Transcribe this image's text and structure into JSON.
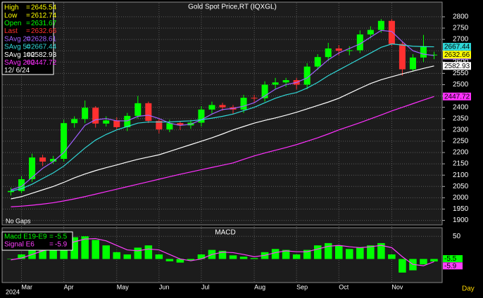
{
  "chart_data": [
    {
      "type": "candlestick",
      "title": "Gold Spot Price,RT  (IQXGL)",
      "date": "12/ 6/24",
      "note": "No Gaps",
      "up_color": "#00ff00",
      "down_color": "#ff3030",
      "open": [
        2025,
        2030,
        2082,
        2178,
        2160,
        2172,
        2330,
        2348,
        2398,
        2328,
        2342,
        2312,
        2362,
        2418,
        2340,
        2302,
        2330,
        2320,
        2332,
        2390,
        2410,
        2400,
        2390,
        2442,
        2440,
        2500,
        2510,
        2520,
        2500,
        2580,
        2622,
        2660,
        2650,
        2652,
        2722,
        2742,
        2782,
        2680,
        2568,
        2620,
        2631.67
      ],
      "high": [
        2045,
        2095,
        2195,
        2190,
        2185,
        2345,
        2360,
        2430,
        2405,
        2360,
        2355,
        2375,
        2450,
        2425,
        2350,
        2345,
        2340,
        2345,
        2405,
        2425,
        2420,
        2410,
        2455,
        2455,
        2515,
        2530,
        2530,
        2530,
        2595,
        2635,
        2685,
        2675,
        2670,
        2740,
        2758,
        2790,
        2790,
        2690,
        2635,
        2720,
        2645.54
      ],
      "low": [
        2010,
        2020,
        2070,
        2140,
        2150,
        2160,
        2310,
        2330,
        2310,
        2315,
        2300,
        2295,
        2350,
        2330,
        2285,
        2290,
        2300,
        2305,
        2315,
        2370,
        2385,
        2370,
        2375,
        2420,
        2425,
        2480,
        2490,
        2480,
        2480,
        2565,
        2605,
        2630,
        2630,
        2640,
        2705,
        2730,
        2670,
        2540,
        2560,
        2600,
        2612.74
      ],
      "close": [
        2030,
        2082,
        2178,
        2160,
        2172,
        2330,
        2348,
        2398,
        2328,
        2342,
        2312,
        2362,
        2418,
        2340,
        2302,
        2330,
        2320,
        2332,
        2390,
        2410,
        2400,
        2390,
        2442,
        2440,
        2500,
        2510,
        2520,
        2500,
        2580,
        2622,
        2660,
        2650,
        2652,
        2722,
        2742,
        2782,
        2680,
        2568,
        2620,
        2670,
        2632.66
      ],
      "quote": [
        {
          "name": "High",
          "value": 2645.54,
          "color": "#ffff00"
        },
        {
          "name": "Low",
          "value": 2612.74,
          "color": "#ffff00"
        },
        {
          "name": "Open",
          "value": 2631.67,
          "color": "#00ff00"
        },
        {
          "name": "Last",
          "value": 2632.66,
          "color": "#ff3030"
        }
      ],
      "last_color": "#ffff00",
      "series": [
        {
          "name": "SAvg 20",
          "color": "#a060ff",
          "values": [
            2035,
            2050,
            2090,
            2130,
            2160,
            2200,
            2260,
            2320,
            2345,
            2350,
            2340,
            2340,
            2360,
            2365,
            2350,
            2330,
            2320,
            2325,
            2345,
            2370,
            2390,
            2395,
            2405,
            2420,
            2450,
            2480,
            2500,
            2510,
            2530,
            2570,
            2610,
            2640,
            2660,
            2680,
            2710,
            2740,
            2735,
            2690,
            2650,
            2635,
            2628.61
          ]
        },
        {
          "name": "SAvg 50",
          "color": "#30d8d8",
          "values": [
            2030,
            2040,
            2060,
            2085,
            2110,
            2140,
            2180,
            2220,
            2255,
            2280,
            2300,
            2315,
            2330,
            2335,
            2335,
            2335,
            2338,
            2340,
            2345,
            2352,
            2360,
            2370,
            2385,
            2400,
            2420,
            2440,
            2455,
            2465,
            2485,
            2510,
            2540,
            2565,
            2590,
            2615,
            2640,
            2665,
            2680,
            2675,
            2670,
            2668,
            2667.44
          ]
        },
        {
          "name": "SAvg 100",
          "color": "#ffffff",
          "values": [
            1995,
            2005,
            2020,
            2035,
            2050,
            2068,
            2088,
            2105,
            2120,
            2133,
            2145,
            2158,
            2170,
            2180,
            2190,
            2205,
            2220,
            2235,
            2250,
            2265,
            2282,
            2300,
            2315,
            2330,
            2342,
            2353,
            2365,
            2378,
            2393,
            2408,
            2423,
            2440,
            2462,
            2484,
            2505,
            2522,
            2535,
            2548,
            2560,
            2572,
            2582.93
          ]
        },
        {
          "name": "SAvg 200",
          "color": "#ff30ff",
          "values": [
            1960,
            1963,
            1967,
            1972,
            1978,
            1986,
            1995,
            2005,
            2016,
            2027,
            2038,
            2049,
            2060,
            2071,
            2082,
            2093,
            2104,
            2114,
            2124,
            2134,
            2144,
            2154,
            2170,
            2185,
            2198,
            2210,
            2222,
            2235,
            2250,
            2265,
            2282,
            2300,
            2316,
            2332,
            2349,
            2366,
            2384,
            2400,
            2416,
            2432,
            2447.72
          ]
        }
      ],
      "ylim": [
        1880,
        2865
      ],
      "yticks": [
        1900,
        1950,
        2000,
        2050,
        2100,
        2150,
        2200,
        2250,
        2300,
        2350,
        2400,
        2450,
        2500,
        2550,
        2600,
        2650,
        2700,
        2750,
        2800
      ],
      "grid": true
    },
    {
      "type": "macd",
      "title": "MACD",
      "x_label": "Day",
      "year": "2024",
      "categories": [
        null,
        "Mar",
        null,
        null,
        null,
        "Apr",
        null,
        null,
        null,
        null,
        "May",
        null,
        null,
        null,
        "Jun",
        null,
        null,
        null,
        "Jul",
        null,
        null,
        null,
        null,
        "Aug",
        null,
        null,
        null,
        "Sep",
        null,
        null,
        null,
        "Oct",
        null,
        null,
        null,
        null,
        "Nov",
        null,
        null,
        null,
        null
      ],
      "series": [
        {
          "name": "Macd  E19-E9",
          "color": "#00ff00",
          "style": "bar",
          "values": [
            0,
            10,
            25,
            30,
            28,
            40,
            48,
            50,
            42,
            30,
            15,
            10,
            25,
            30,
            10,
            -5,
            -8,
            -3,
            10,
            20,
            18,
            8,
            5,
            2,
            15,
            22,
            20,
            10,
            20,
            30,
            35,
            30,
            22,
            25,
            30,
            35,
            10,
            -30,
            -25,
            -12,
            -5.5
          ]
        },
        {
          "name": "Signal  E6",
          "color": "#ff40ff",
          "style": "line",
          "values": [
            -2,
            2,
            10,
            18,
            24,
            30,
            38,
            44,
            45,
            40,
            30,
            20,
            18,
            22,
            20,
            10,
            0,
            -4,
            0,
            10,
            15,
            14,
            10,
            5,
            8,
            14,
            18,
            16,
            16,
            22,
            28,
            30,
            27,
            25,
            27,
            30,
            25,
            5,
            -12,
            -15,
            -5.9
          ]
        }
      ],
      "ylim": [
        -52,
        69
      ],
      "yticks": [
        50
      ],
      "grid": true
    }
  ]
}
